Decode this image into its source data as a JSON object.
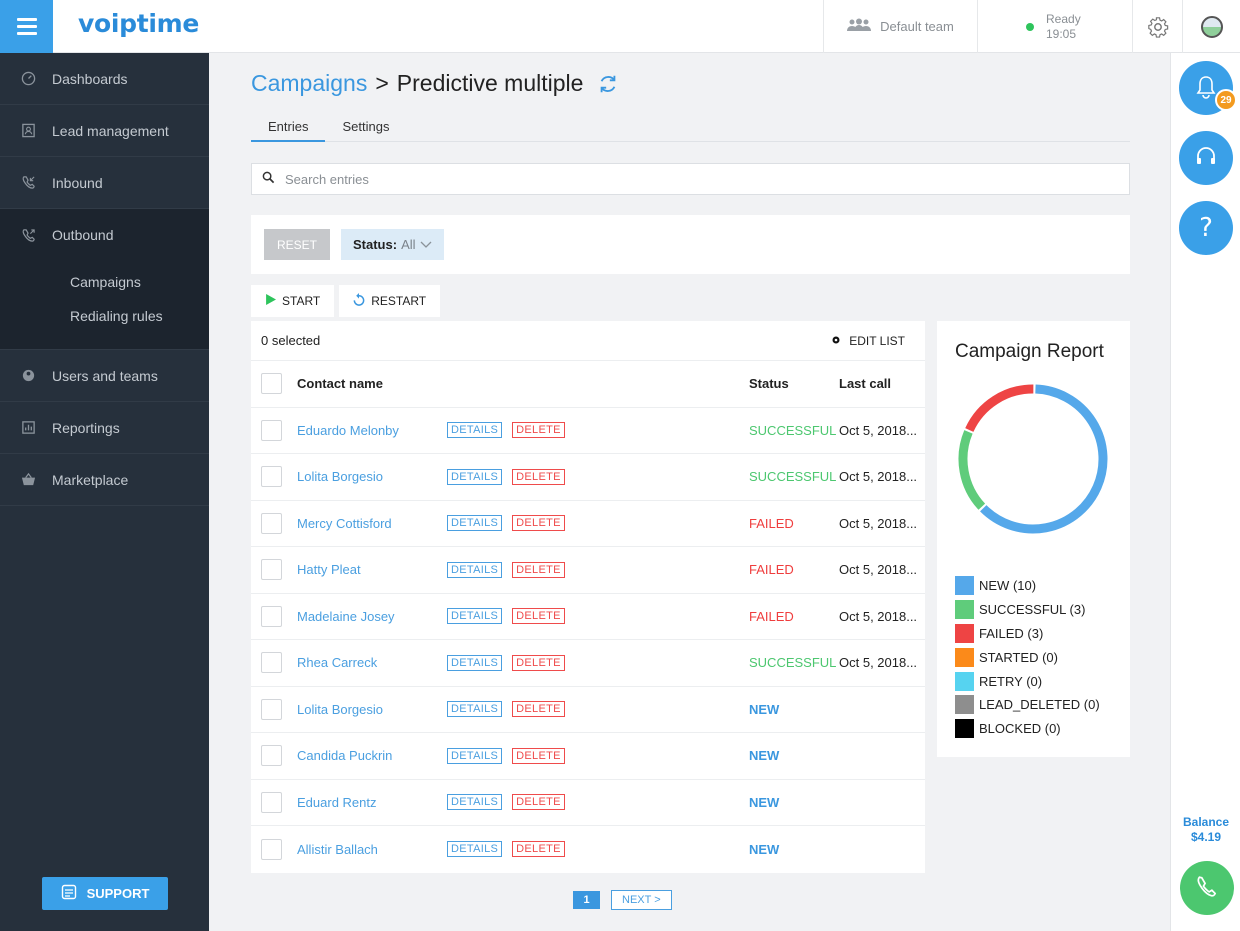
{
  "app": {
    "logo": "voiptime"
  },
  "topbar": {
    "team_label": "Default team",
    "status_label": "Ready",
    "status_time": "19:05"
  },
  "sidebar": {
    "items": [
      {
        "label": "Dashboards",
        "icon": "gauge-icon"
      },
      {
        "label": "Lead management",
        "icon": "contact-card-icon"
      },
      {
        "label": "Inbound",
        "icon": "inbound-call-icon"
      },
      {
        "label": "Outbound",
        "icon": "outbound-call-icon"
      },
      {
        "label": "Users and teams",
        "icon": "users-icon"
      },
      {
        "label": "Reportings",
        "icon": "report-icon"
      },
      {
        "label": "Marketplace",
        "icon": "basket-icon"
      }
    ],
    "subitems": [
      {
        "label": "Campaigns"
      },
      {
        "label": "Redialing rules"
      }
    ],
    "support_label": "SUPPORT"
  },
  "rail": {
    "notification_count": "29",
    "balance_label": "Balance",
    "balance_value": "$4.19"
  },
  "main": {
    "breadcrumb_parent": "Campaigns",
    "breadcrumb_sep": ">",
    "breadcrumb_current": "Predictive multiple",
    "tabs": [
      {
        "label": "Entries"
      },
      {
        "label": "Settings"
      }
    ],
    "search_placeholder": "Search entries",
    "reset_label": "RESET",
    "status_filter_label": "Status:",
    "status_filter_value": "All",
    "start_label": "START",
    "restart_label": "RESTART",
    "selected_text": "0 selected",
    "edit_list_label": "EDIT LIST",
    "columns": {
      "name": "Contact name",
      "status": "Status",
      "last_call": "Last call"
    },
    "details_label": "DETAILS",
    "delete_label": "DELETE",
    "rows": [
      {
        "name": "Eduardo Melonby",
        "status": "SUCCESSFUL",
        "last_call": "Oct 5, 2018..."
      },
      {
        "name": "Lolita Borgesio",
        "status": "SUCCESSFUL",
        "last_call": "Oct 5, 2018..."
      },
      {
        "name": "Mercy Cottisford",
        "status": "FAILED",
        "last_call": "Oct 5, 2018..."
      },
      {
        "name": "Hatty Pleat",
        "status": "FAILED",
        "last_call": "Oct 5, 2018..."
      },
      {
        "name": "Madelaine Josey",
        "status": "FAILED",
        "last_call": "Oct 5, 2018..."
      },
      {
        "name": "Rhea Carreck",
        "status": "SUCCESSFUL",
        "last_call": "Oct 5, 2018..."
      },
      {
        "name": "Lolita Borgesio",
        "status": "NEW",
        "last_call": ""
      },
      {
        "name": "Candida Puckrin",
        "status": "NEW",
        "last_call": ""
      },
      {
        "name": "Eduard Rentz",
        "status": "NEW",
        "last_call": ""
      },
      {
        "name": "Allistir Ballach",
        "status": "NEW",
        "last_call": ""
      }
    ],
    "pagination": {
      "current": "1",
      "next_label": "NEXT >"
    }
  },
  "chart_data": {
    "type": "pie",
    "title": "Campaign Report",
    "series": [
      {
        "name": "NEW",
        "value": 10,
        "label": "NEW (10)",
        "color": "#55a8ea"
      },
      {
        "name": "SUCCESSFUL",
        "value": 3,
        "label": "SUCCESSFUL (3)",
        "color": "#5fcc7b"
      },
      {
        "name": "FAILED",
        "value": 3,
        "label": "FAILED (3)",
        "color": "#ee4444"
      },
      {
        "name": "STARTED",
        "value": 0,
        "label": "STARTED (0)",
        "color": "#fb8a1a"
      },
      {
        "name": "RETRY",
        "value": 0,
        "label": "RETRY (0)",
        "color": "#56d3f0"
      },
      {
        "name": "LEAD_DELETED",
        "value": 0,
        "label": "LEAD_DELETED (0)",
        "color": "#8e8e8e"
      },
      {
        "name": "BLOCKED",
        "value": 0,
        "label": "BLOCKED (0)",
        "color": "#000000"
      }
    ]
  }
}
